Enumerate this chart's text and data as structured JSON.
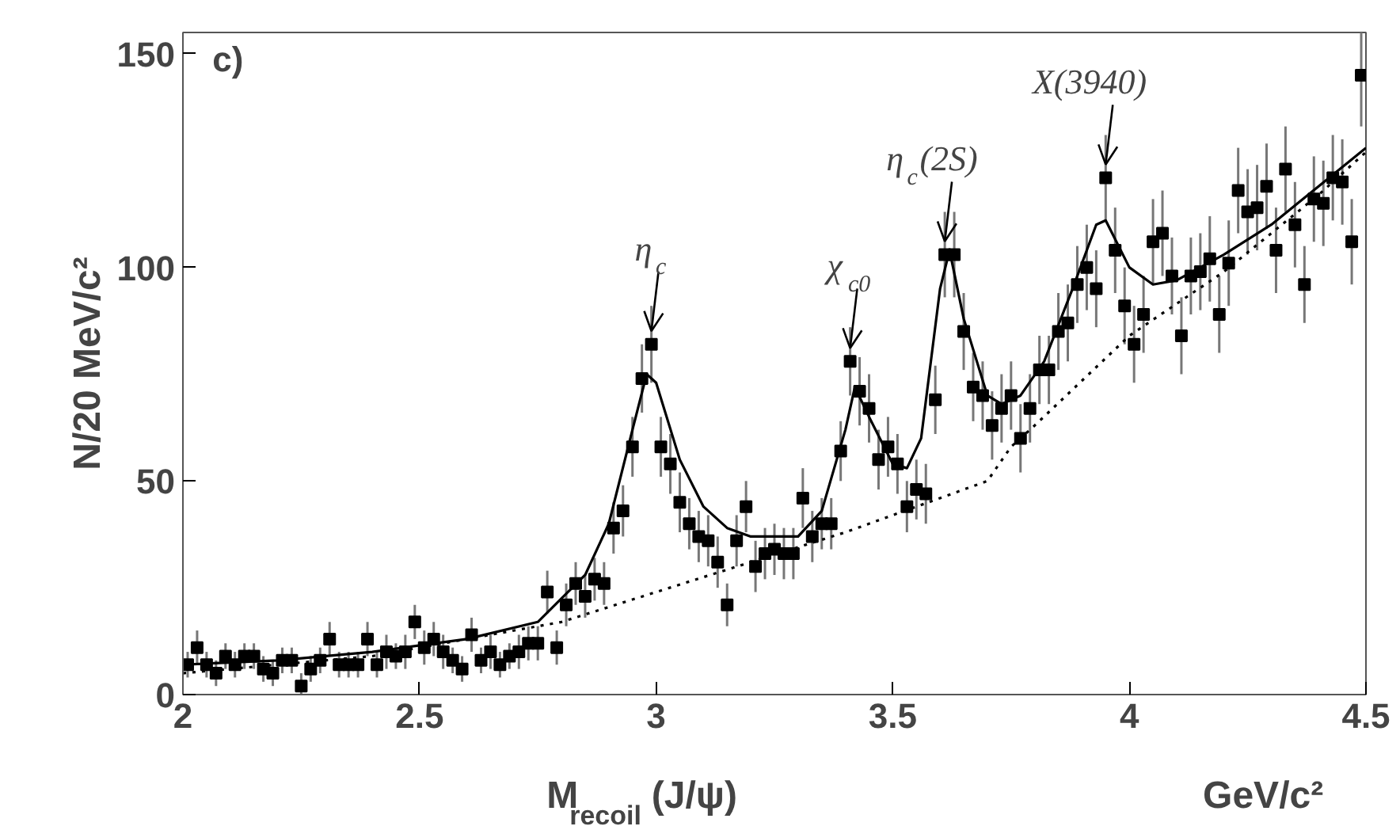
{
  "chart_data": {
    "type": "scatter",
    "xlabel": "M$_{recoil}$(J/ψ)",
    "ylabel": "N/20 MeV/c²",
    "xlim": [
      2,
      4.5
    ],
    "ylim": [
      0,
      155
    ],
    "xticks": [
      2,
      2.5,
      3,
      3.5,
      4,
      4.5
    ],
    "yticks": [
      0,
      50,
      100,
      150
    ],
    "grid": false,
    "annotations": [
      "c)",
      "GeV/c²",
      {
        "text": "η$_{c}$",
        "x": 2.99,
        "y": 82
      },
      {
        "text": "χ$_{c0}$",
        "x": 3.41,
        "y": 78
      },
      {
        "text": "η$_{c}$(2S)",
        "x": 3.61,
        "y": 103
      },
      {
        "text": "X(3940)",
        "x": 3.95,
        "y": 121
      }
    ],
    "series": [
      {
        "marker": "square",
        "color": "#000000",
        "x": [
          2.01,
          2.03,
          2.05,
          2.07,
          2.09,
          2.11,
          2.13,
          2.15,
          2.17,
          2.19,
          2.21,
          2.23,
          2.25,
          2.27,
          2.29,
          2.31,
          2.33,
          2.35,
          2.37,
          2.39,
          2.41,
          2.43,
          2.45,
          2.47,
          2.49,
          2.51,
          2.53,
          2.55,
          2.57,
          2.59,
          2.61,
          2.63,
          2.65,
          2.67,
          2.69,
          2.71,
          2.73,
          2.75,
          2.77,
          2.79,
          2.81,
          2.83,
          2.85,
          2.87,
          2.89,
          2.91,
          2.93,
          2.95,
          2.97,
          2.99,
          3.01,
          3.03,
          3.05,
          3.07,
          3.09,
          3.11,
          3.13,
          3.15,
          3.17,
          3.19,
          3.21,
          3.23,
          3.25,
          3.27,
          3.29,
          3.31,
          3.33,
          3.35,
          3.37,
          3.39,
          3.41,
          3.43,
          3.45,
          3.47,
          3.49,
          3.51,
          3.53,
          3.55,
          3.57,
          3.59,
          3.61,
          3.63,
          3.65,
          3.67,
          3.69,
          3.71,
          3.73,
          3.75,
          3.77,
          3.79,
          3.81,
          3.83,
          3.85,
          3.87,
          3.89,
          3.91,
          3.93,
          3.95,
          3.97,
          3.99,
          4.01,
          4.03,
          4.05,
          4.07,
          4.09,
          4.11,
          4.13,
          4.15,
          4.17,
          4.19,
          4.21,
          4.23,
          4.25,
          4.27,
          4.29,
          4.31,
          4.33,
          4.35,
          4.37,
          4.39,
          4.41,
          4.43,
          4.45,
          4.47,
          4.49
        ],
        "values": [
          7,
          11,
          7,
          5,
          9,
          7,
          9,
          9,
          6,
          5,
          8,
          8,
          2,
          6,
          8,
          13,
          7,
          7,
          7,
          13,
          7,
          10,
          9,
          10,
          17,
          11,
          13,
          10,
          8,
          6,
          14,
          8,
          10,
          7,
          9,
          10,
          12,
          12,
          24,
          11,
          21,
          26,
          23,
          27,
          26,
          39,
          43,
          58,
          74,
          82,
          58,
          54,
          45,
          40,
          37,
          36,
          31,
          21,
          36,
          44,
          30,
          33,
          34,
          33,
          33,
          46,
          37,
          40,
          40,
          57,
          78,
          71,
          67,
          55,
          58,
          54,
          44,
          48,
          47,
          69,
          103,
          103,
          85,
          72,
          70,
          63,
          67,
          70,
          60,
          67,
          76,
          76,
          85,
          87,
          96,
          100,
          95,
          121,
          104,
          91,
          82,
          89,
          106,
          108,
          98,
          84,
          98,
          99,
          102,
          89,
          101,
          118,
          113,
          114,
          119,
          104,
          123,
          110,
          96,
          116,
          115,
          121,
          120,
          106,
          145
        ],
        "errors": [
          3,
          4,
          3,
          3,
          3,
          3,
          3,
          3,
          3,
          3,
          3,
          3,
          3,
          3,
          3,
          4,
          3,
          3,
          3,
          4,
          3,
          4,
          3,
          4,
          4,
          4,
          4,
          4,
          3,
          3,
          4,
          3,
          4,
          3,
          3,
          4,
          4,
          4,
          5,
          4,
          5,
          5,
          5,
          5,
          5,
          6,
          6,
          7,
          8,
          9,
          7,
          7,
          7,
          6,
          6,
          6,
          6,
          5,
          6,
          6,
          6,
          6,
          6,
          6,
          6,
          7,
          6,
          6,
          6,
          7,
          8,
          8,
          8,
          7,
          7,
          7,
          6,
          7,
          7,
          8,
          10,
          10,
          9,
          8,
          8,
          8,
          8,
          8,
          8,
          8,
          8,
          8,
          9,
          9,
          9,
          10,
          9,
          10,
          10,
          9,
          9,
          9,
          10,
          10,
          9,
          9,
          9,
          9,
          10,
          9,
          10,
          10,
          10,
          10,
          10,
          10,
          10,
          10,
          9,
          10,
          10,
          10,
          10,
          10,
          12
        ]
      },
      {
        "type": "line",
        "line_style": "solid",
        "color": "#000000",
        "x": [
          2.0,
          2.2,
          2.4,
          2.6,
          2.75,
          2.85,
          2.9,
          2.95,
          2.98,
          3.0,
          3.05,
          3.1,
          3.15,
          3.2,
          3.3,
          3.35,
          3.4,
          3.42,
          3.45,
          3.5,
          3.53,
          3.56,
          3.6,
          3.62,
          3.65,
          3.7,
          3.73,
          3.77,
          3.82,
          3.88,
          3.93,
          3.95,
          4.0,
          4.05,
          4.1,
          4.2,
          4.3,
          4.4,
          4.5
        ],
        "values": [
          7,
          8,
          10,
          13,
          17,
          28,
          40,
          62,
          75,
          73,
          55,
          44,
          39,
          37,
          37,
          43,
          62,
          72,
          65,
          54,
          53,
          60,
          95,
          104,
          88,
          70,
          68,
          70,
          78,
          95,
          110,
          111,
          100,
          96,
          97,
          103,
          110,
          119,
          128
        ]
      },
      {
        "type": "line",
        "line_style": "dotted",
        "color": "#000000",
        "x": [
          2.0,
          2.4,
          2.8,
          3.0,
          3.2,
          3.4,
          3.6,
          3.7,
          3.75,
          3.8,
          4.0,
          4.2,
          4.4,
          4.5
        ],
        "values": [
          5,
          9,
          17,
          24,
          31,
          38,
          46,
          50,
          58,
          63,
          84,
          99,
          117,
          127
        ]
      }
    ]
  }
}
